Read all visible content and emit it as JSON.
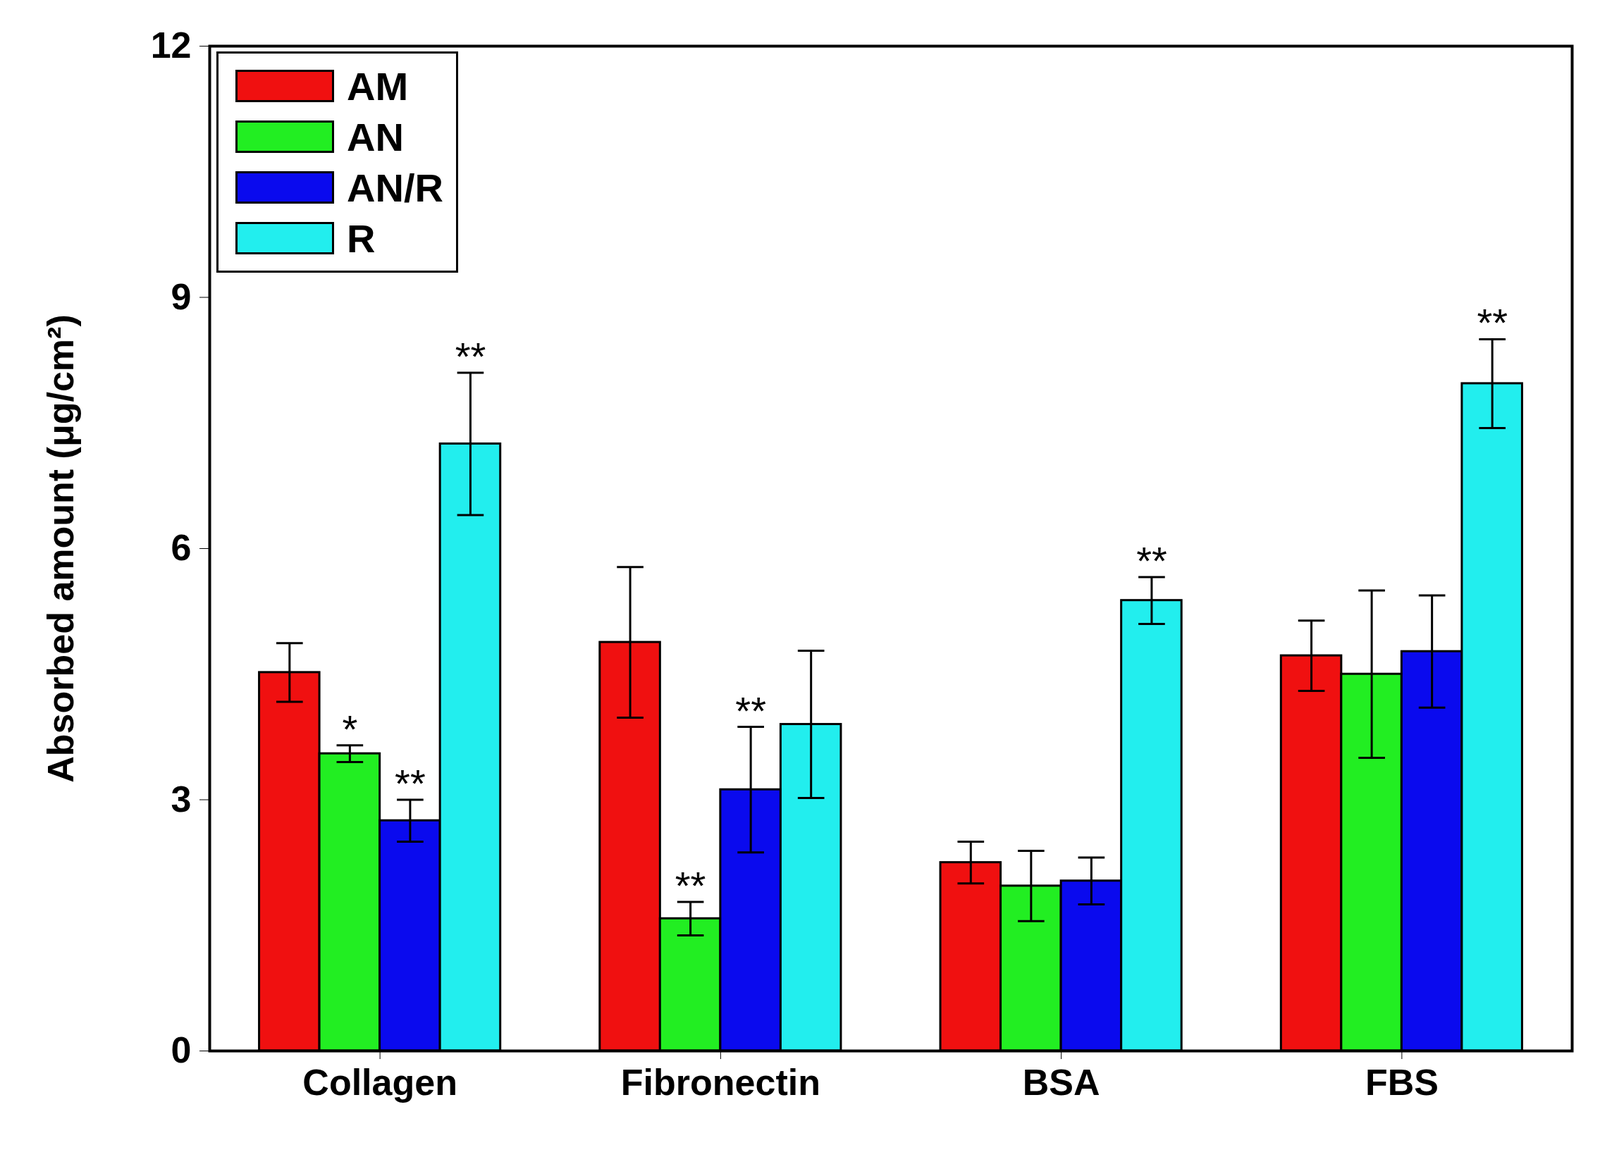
{
  "chart_data": {
    "type": "bar",
    "categories": [
      "Collagen",
      "Fibronectin",
      "BSA",
      "FBS"
    ],
    "series": [
      {
        "name": "AM",
        "color": "#f01010",
        "values": [
          4.52,
          4.88,
          2.25,
          4.72
        ],
        "errors": [
          0.35,
          0.9,
          0.25,
          0.42
        ],
        "annotations": [
          null,
          null,
          null,
          null
        ]
      },
      {
        "name": "AN",
        "color": "#22ee22",
        "values": [
          3.55,
          1.58,
          1.97,
          4.5
        ],
        "errors": [
          0.1,
          0.2,
          0.42,
          1.0
        ],
        "annotations": [
          "*",
          "**",
          null,
          null
        ]
      },
      {
        "name": "AN/R",
        "color": "#0a0aee",
        "values": [
          2.75,
          3.12,
          2.03,
          4.77
        ],
        "errors": [
          0.25,
          0.75,
          0.28,
          0.67
        ],
        "annotations": [
          "**",
          "**",
          null,
          null
        ]
      },
      {
        "name": "R",
        "color": "#22eeee",
        "values": [
          7.25,
          3.9,
          5.38,
          7.97
        ],
        "errors": [
          0.85,
          0.88,
          0.28,
          0.53
        ],
        "annotations": [
          "**",
          null,
          "**",
          "**"
        ]
      }
    ],
    "y_label": "Absorbed amount (μg/cm²)",
    "ylim": [
      0,
      12
    ],
    "yticks": [
      0,
      3,
      6,
      9,
      12
    ],
    "legend": "top-left",
    "grid": false
  }
}
